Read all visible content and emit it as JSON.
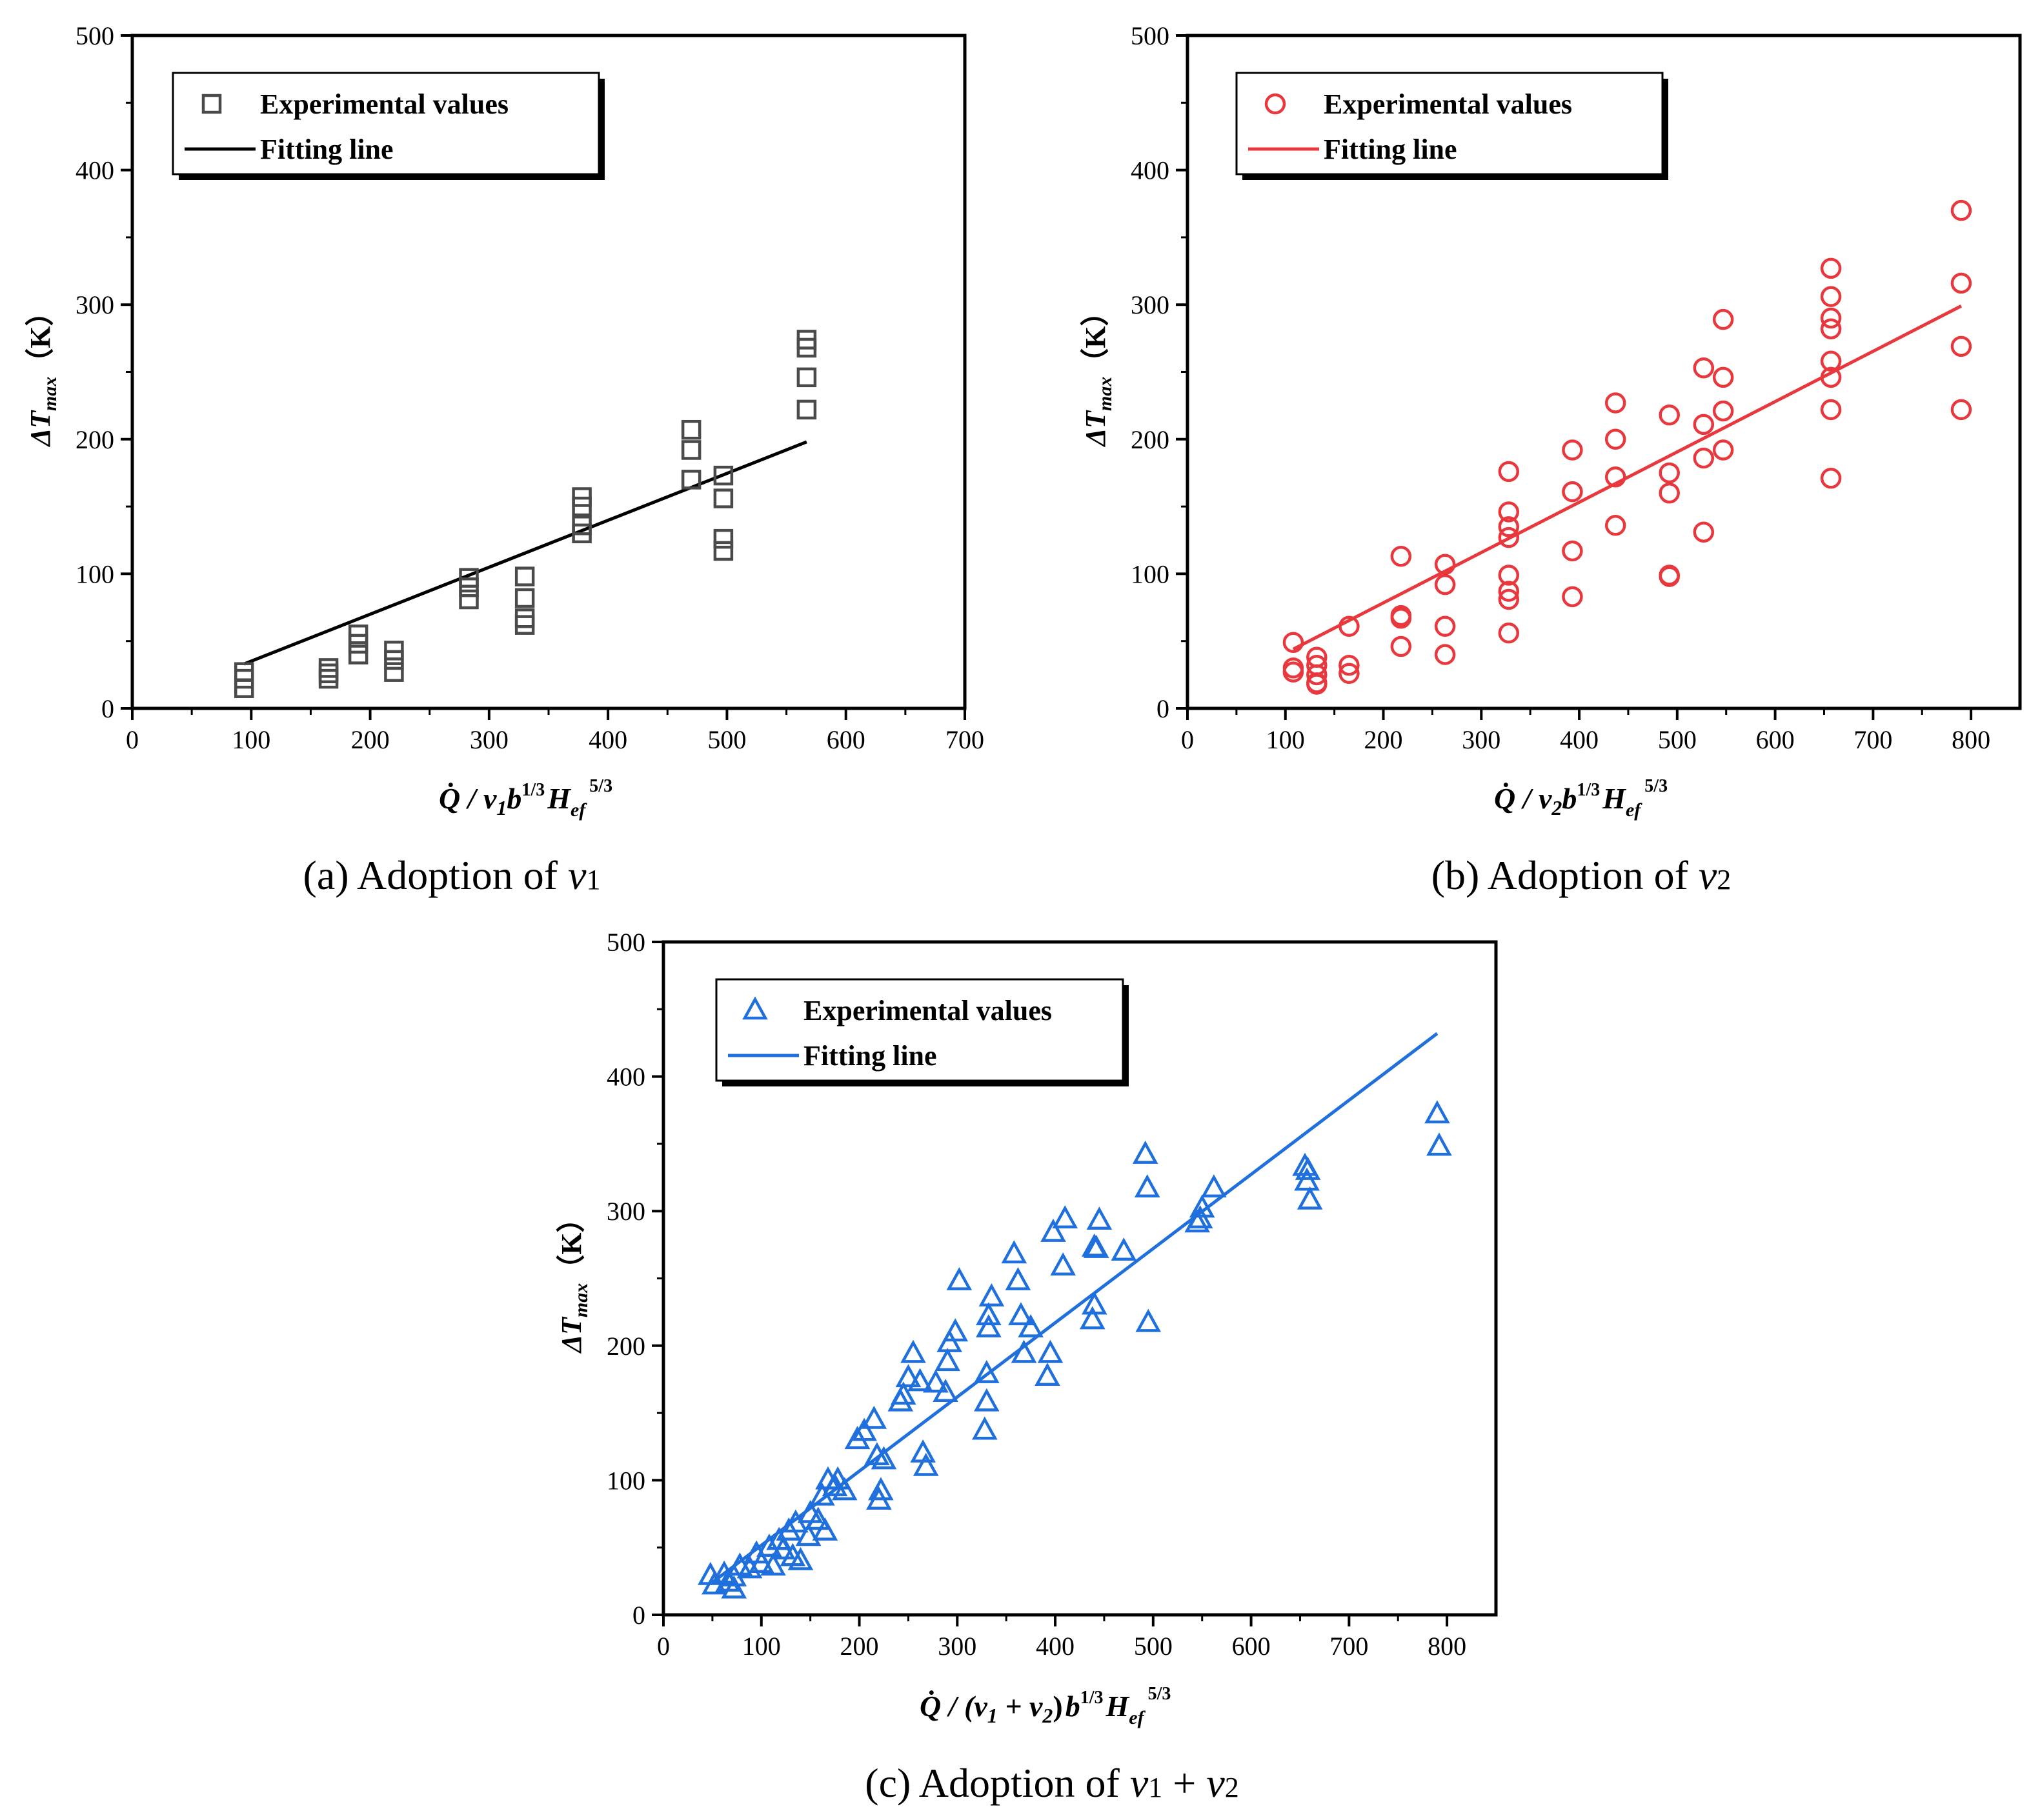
{
  "charts": [
    {
      "id": "a",
      "chart_data": {
        "type": "scatter",
        "xlabel": {
          "main": "Q̇ / v",
          "sub1": "1",
          "b": "b",
          "bexp": "1/3",
          "H": "H",
          "Hsub": "ef",
          "Hexp": "5/3"
        },
        "ylabel": {
          "delta": "ΔT",
          "sub": "max",
          "unit": "（K）"
        },
        "xlim": [
          0,
          700
        ],
        "ylim": [
          0,
          500
        ],
        "xticks": [
          0,
          100,
          200,
          300,
          400,
          500,
          600,
          700
        ],
        "yticks": [
          0,
          100,
          200,
          300,
          400,
          500
        ],
        "legend": [
          "Experimental values",
          "Fitting line"
        ],
        "legend_position": "top-left",
        "marker": "square",
        "color": "#4a4a4a",
        "line_color": "#000000",
        "series": [
          {
            "name": "Experimental values",
            "x": [
              94,
              94,
              94,
              165,
              165,
              165,
              190,
              190,
              190,
              220,
              220,
              220,
              283,
              283,
              283,
              330,
              330,
              330,
              330,
              378,
              378,
              378,
              378,
              470,
              470,
              470,
              497,
              497,
              497,
              497,
              567,
              567,
              567,
              567
            ],
            "y": [
              27,
              22,
              15,
              30,
              26,
              22,
              55,
              48,
              40,
              43,
              36,
              27,
              97,
              90,
              81,
              98,
              82,
              67,
              62,
              157,
              150,
              136,
              130,
              207,
              192,
              170,
              173,
              156,
              126,
              117,
              274,
              268,
              246,
              222
            ]
          },
          {
            "name": "Fitting line",
            "x": [
              94,
              567
            ],
            "y": [
              33,
              198
            ]
          }
        ]
      },
      "caption": {
        "label": "(a)",
        "text": " Adoption of ",
        "v": "v",
        "sub": "1"
      }
    },
    {
      "id": "b",
      "chart_data": {
        "type": "scatter",
        "xlabel": {
          "main": "Q̇ / v",
          "sub1": "2",
          "b": "b",
          "bexp": "1/3",
          "H": "H",
          "Hsub": "ef",
          "Hexp": "5/3"
        },
        "ylabel": {
          "delta": "ΔT",
          "sub": "max",
          "unit": "（K）"
        },
        "xlim": [
          0,
          850
        ],
        "ylim": [
          0,
          500
        ],
        "xticks": [
          0,
          100,
          200,
          300,
          400,
          500,
          600,
          700,
          800
        ],
        "yticks": [
          0,
          100,
          200,
          300,
          400,
          500
        ],
        "legend": [
          "Experimental values",
          "Fitting line"
        ],
        "legend_position": "top-left",
        "marker": "circle",
        "color": "#e8383d",
        "line_color": "#e8383d",
        "series": [
          {
            "name": "Experimental values",
            "x": [
              108,
              108,
              108,
              132,
              132,
              132,
              132,
              132,
              165,
              165,
              165,
              218,
              218,
              218,
              218,
              263,
              263,
              263,
              263,
              328,
              328,
              328,
              328,
              328,
              328,
              328,
              328,
              393,
              393,
              393,
              393,
              437,
              437,
              437,
              437,
              492,
              492,
              492,
              492,
              492,
              527,
              527,
              527,
              527,
              547,
              547,
              547,
              547,
              657,
              657,
              657,
              657,
              657,
              657,
              657,
              657,
              790,
              790,
              790,
              790
            ],
            "y": [
              49,
              30,
              27,
              38,
              32,
              25,
              19,
              18,
              61,
              32,
              26,
              113,
              69,
              67,
              46,
              107,
              92,
              61,
              40,
              176,
              146,
              135,
              127,
              99,
              87,
              81,
              56,
              192,
              161,
              117,
              83,
              227,
              200,
              172,
              136,
              218,
              175,
              160,
              99,
              98,
              253,
              211,
              186,
              131,
              289,
              246,
              221,
              192,
              327,
              306,
              290,
              282,
              258,
              246,
              222,
              171,
              370,
              316,
              269,
              222
            ]
          },
          {
            "name": "Fitting line",
            "x": [
              108,
              790
            ],
            "y": [
              44,
              299
            ]
          }
        ]
      },
      "caption": {
        "label": "(b)",
        "text": " Adoption of ",
        "v": "v",
        "sub": "2"
      }
    },
    {
      "id": "c",
      "chart_data": {
        "type": "scatter",
        "xlabel": {
          "main": "Q̇ / (v",
          "sub1": "1",
          "mid": " + v",
          "sub2": "2",
          "close": ")",
          "b": "b",
          "bexp": "1/3",
          "H": "H",
          "Hsub": "ef",
          "Hexp": "5/3"
        },
        "ylabel": {
          "delta": "ΔT",
          "sub": "max",
          "unit": "（K）"
        },
        "xlim": [
          0,
          850
        ],
        "ylim": [
          0,
          500
        ],
        "xticks": [
          0,
          100,
          200,
          300,
          400,
          500,
          600,
          700,
          800
        ],
        "yticks": [
          0,
          100,
          200,
          300,
          400,
          500
        ],
        "legend": [
          "Experimental values",
          "Fitting line"
        ],
        "legend_position": "top-left",
        "marker": "triangle",
        "color": "#1f6fdc",
        "line_color": "#1f6fdc",
        "series": [
          {
            "name": "Experimental values",
            "x": [
              48,
              52,
              62,
              66,
              72,
              72,
              78,
              88,
              95,
              100,
              108,
              112,
              118,
              122,
              128,
              132,
              135,
              140,
              148,
              150,
              158,
              162,
              165,
              168,
              175,
              178,
              185,
              198,
              205,
              215,
              218,
              220,
              222,
              225,
              242,
              245,
              250,
              255,
              262,
              265,
              268,
              278,
              288,
              290,
              292,
              298,
              302,
              328,
              330,
              330,
              332,
              332,
              335,
              358,
              362,
              365,
              368,
              375,
              392,
              395,
              398,
              408,
              410,
              438,
              440,
              440,
              442,
              445,
              470,
              492,
              494,
              495,
              545,
              548,
              550,
              562,
              655,
              657,
              658,
              660,
              790,
              792
            ],
            "y": [
              29,
              22,
              30,
              24,
              19,
              28,
              36,
              34,
              45,
              38,
              50,
              36,
              55,
              48,
              62,
              43,
              68,
              40,
              58,
              75,
              70,
              88,
              62,
              100,
              95,
              100,
              92,
              130,
              136,
              145,
              118,
              85,
              92,
              115,
              158,
              163,
              176,
              194,
              173,
              120,
              110,
              172,
              165,
              188,
              202,
              210,
              248,
              137,
              158,
              179,
              213,
              222,
              236,
              268,
              248,
              222,
              194,
              213,
              177,
              194,
              284,
              259,
              294,
              219,
              230,
              273,
              272,
              293,
              270,
              342,
              317,
              217,
              291,
              294,
              302,
              317,
              333,
              322,
              330,
              308,
              372,
              348
            ]
          },
          {
            "name": "Fitting line",
            "x": [
              48,
              790
            ],
            "y": [
              23,
              432
            ]
          }
        ]
      },
      "caption": {
        "label": "(c)",
        "text": " Adoption of ",
        "v": "v",
        "sub": "1",
        "plus": " + ",
        "v2": "v",
        "sub2": "2"
      }
    }
  ]
}
